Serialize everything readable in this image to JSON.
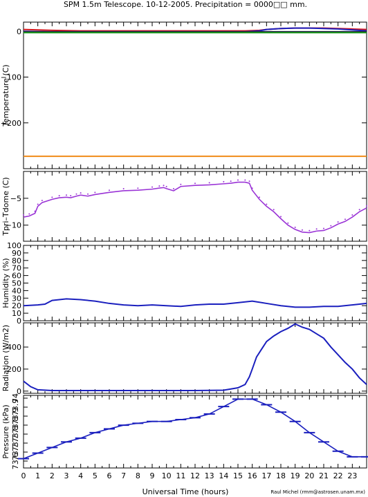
{
  "title": "SPM 1.5m Telescope. 10-12-2005. Precipitation = 0000□□ mm.",
  "credit": "Raul Michel (rmm@astrosen.unam.mx)",
  "xlabel": "Universal Time (hours)",
  "x_ticks": [
    0,
    1,
    2,
    3,
    4,
    5,
    6,
    7,
    8,
    9,
    10,
    11,
    12,
    13,
    14,
    15,
    16,
    17,
    18,
    19,
    20,
    21,
    22,
    23
  ],
  "colors": {
    "purple": "#9a33d6",
    "blue": "#1a1fbe",
    "red": "#d4161e",
    "green": "#1a9a1a",
    "orange": "#f08a16",
    "dark": "#222244"
  },
  "chart_data": [
    {
      "type": "line",
      "panel": "temperature",
      "ylabel": "Temperature (C)",
      "ylim": [
        -300,
        20
      ],
      "yticks": [
        0,
        -100,
        -200
      ],
      "xlim": [
        0,
        24
      ],
      "series": [
        {
          "color": "red",
          "x": [
            0,
            1,
            2,
            4,
            6,
            8,
            10,
            12,
            14,
            15.5,
            16.5,
            17,
            18,
            19,
            20,
            21,
            22,
            23,
            24
          ],
          "values": [
            4,
            3,
            2,
            1,
            1,
            1,
            1,
            1,
            1,
            1,
            2,
            4,
            6,
            7,
            7,
            7,
            6,
            5,
            4
          ]
        },
        {
          "color": "blue",
          "x": [
            0,
            2,
            4,
            6,
            8,
            10,
            12,
            14,
            15.5,
            16.5,
            17,
            18,
            19,
            20,
            21,
            22,
            23,
            24
          ],
          "values": [
            0,
            -1,
            -1,
            -1,
            -1,
            -1,
            -1,
            -1,
            -1,
            1,
            4,
            6,
            7,
            7,
            6,
            5,
            3,
            1
          ]
        },
        {
          "color": "dark",
          "x": [
            0,
            24
          ],
          "values": [
            -1,
            -1
          ]
        },
        {
          "color": "green",
          "x": [
            0,
            24
          ],
          "values": [
            -3,
            -3
          ]
        },
        {
          "color": "orange",
          "x": [
            0,
            24
          ],
          "values": [
            -273,
            -273
          ]
        }
      ]
    },
    {
      "type": "scatter",
      "panel": "tpri",
      "ylabel": "Tpri–Tdome (C)",
      "ylim": [
        -13,
        0
      ],
      "yticks": [
        -5,
        -10
      ],
      "xlim": [
        0,
        24
      ],
      "series": [
        {
          "color": "purple",
          "x": [
            0,
            0.4,
            0.8,
            1,
            1.3,
            2,
            2.5,
            3,
            3.3,
            3.7,
            4,
            4.5,
            5,
            6,
            7,
            8,
            9,
            9.5,
            9.8,
            10,
            10.5,
            11,
            12,
            13,
            14,
            14.5,
            15,
            15.5,
            15.8,
            16,
            16.5,
            17,
            17.5,
            18,
            18.5,
            19,
            19.5,
            20,
            20.5,
            21,
            21.5,
            22,
            22.5,
            23,
            23.5,
            24
          ],
          "values": [
            -8.5,
            -8.3,
            -7.8,
            -6.5,
            -5.8,
            -5.2,
            -4.9,
            -4.8,
            -4.9,
            -4.6,
            -4.4,
            -4.6,
            -4.3,
            -3.9,
            -3.6,
            -3.5,
            -3.3,
            -3.1,
            -3.0,
            -3.2,
            -3.6,
            -2.8,
            -2.6,
            -2.5,
            -2.3,
            -2.2,
            -2.0,
            -2.0,
            -2.2,
            -3.5,
            -5.2,
            -6.5,
            -7.5,
            -8.8,
            -10,
            -10.8,
            -11.3,
            -11.4,
            -11.1,
            -11,
            -10.5,
            -9.8,
            -9.3,
            -8.5,
            -7.5,
            -6.8
          ]
        }
      ]
    },
    {
      "type": "line",
      "panel": "humidity",
      "ylabel": "Humidity (%)",
      "ylim": [
        0,
        100
      ],
      "yticks": [
        0,
        10,
        20,
        30,
        40,
        50,
        60,
        70,
        80,
        90,
        100
      ],
      "xlim": [
        0,
        24
      ],
      "series": [
        {
          "color": "blue",
          "x": [
            0,
            1,
            1.5,
            2,
            2.5,
            3,
            4,
            5,
            6,
            7,
            8,
            9,
            10,
            11,
            12,
            13,
            14,
            15,
            16,
            17,
            18,
            19,
            20,
            21,
            22,
            23,
            24
          ],
          "values": [
            20,
            21,
            22,
            27,
            28,
            29,
            28,
            26,
            23,
            21,
            20,
            21,
            20,
            19,
            21,
            22,
            22,
            24,
            26,
            23,
            20,
            18,
            18,
            19,
            19,
            21,
            23
          ]
        }
      ]
    },
    {
      "type": "line",
      "panel": "radiation",
      "ylabel": "Radiation (W/m2)",
      "ylim": [
        -20,
        620
      ],
      "yticks": [
        0,
        200,
        400
      ],
      "xlim": [
        0,
        24
      ],
      "series": [
        {
          "color": "blue",
          "x": [
            0,
            0.5,
            1,
            2,
            4,
            6,
            8,
            10,
            12,
            14,
            15,
            15.5,
            15.8,
            16,
            16.3,
            16.6,
            17,
            17.5,
            18,
            18.5,
            19,
            19.5,
            20,
            20.5,
            21,
            21.5,
            22,
            22.5,
            23,
            23.5,
            24
          ],
          "values": [
            90,
            40,
            12,
            5,
            5,
            5,
            5,
            5,
            5,
            8,
            30,
            60,
            130,
            200,
            310,
            370,
            450,
            500,
            540,
            570,
            610,
            580,
            560,
            520,
            480,
            400,
            330,
            260,
            200,
            120,
            60
          ]
        }
      ]
    },
    {
      "type": "scatter",
      "panel": "pressure",
      "ylabel": "Pressure (kPa)",
      "ylim": [
        73.63,
        74.02
      ],
      "ytick_labels": [
        "73.6",
        "73.7",
        "73.7",
        "73.8",
        "73.8",
        "73.9",
        "73.9",
        "74"
      ],
      "xlim": [
        0,
        24
      ],
      "series": [
        {
          "color": "blue",
          "x": [
            0,
            1,
            2,
            3,
            4,
            5,
            6,
            7,
            8,
            9,
            10,
            11,
            12,
            13,
            14,
            15,
            16,
            17,
            18,
            19,
            20,
            21,
            22,
            23,
            24
          ],
          "values": [
            73.68,
            73.71,
            73.74,
            73.77,
            73.79,
            73.82,
            73.84,
            73.86,
            73.87,
            73.88,
            73.88,
            73.89,
            73.9,
            73.92,
            73.96,
            74.0,
            74.0,
            73.97,
            73.93,
            73.88,
            73.82,
            73.77,
            73.72,
            73.69,
            73.69
          ]
        }
      ]
    }
  ]
}
